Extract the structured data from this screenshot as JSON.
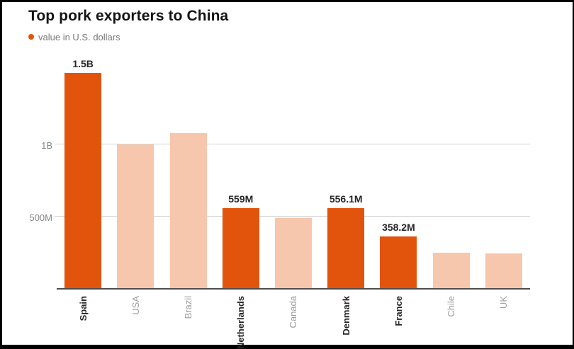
{
  "title": "Top pork exporters to China",
  "legend": {
    "label": "value in U.S. dollars"
  },
  "chart_data": {
    "type": "bar",
    "title": "Top pork exporters to China",
    "legend_label": "value in U.S. dollars",
    "value_unit": "U.S. dollars",
    "legend_position": "top-left",
    "grid": true,
    "categories": [
      "Spain",
      "USA",
      "Brazil",
      "Netherlands",
      "Canada",
      "Denmark",
      "France",
      "Chile",
      "UK"
    ],
    "values_million": [
      1500,
      1000,
      1080,
      559,
      490,
      556.1,
      358.2,
      245,
      240
    ],
    "value_labels": [
      "1.5B",
      "",
      "",
      "559M",
      "",
      "556.1M",
      "358.2M",
      "",
      ""
    ],
    "highlighted": [
      true,
      false,
      false,
      true,
      false,
      true,
      true,
      false,
      false
    ],
    "y_ticks": [
      {
        "value": 500,
        "label": "500M"
      },
      {
        "value": 1000,
        "label": "1B"
      }
    ],
    "ylim": [
      0,
      1537
    ],
    "colors": {
      "highlight": "#e2540c",
      "muted": "#f6c7ac",
      "gridline": "#d4d4d4",
      "axis_line": "#4d4d4d",
      "title_text": "#151515",
      "muted_text": "#9e9e9e",
      "tick_text": "#858585"
    }
  }
}
